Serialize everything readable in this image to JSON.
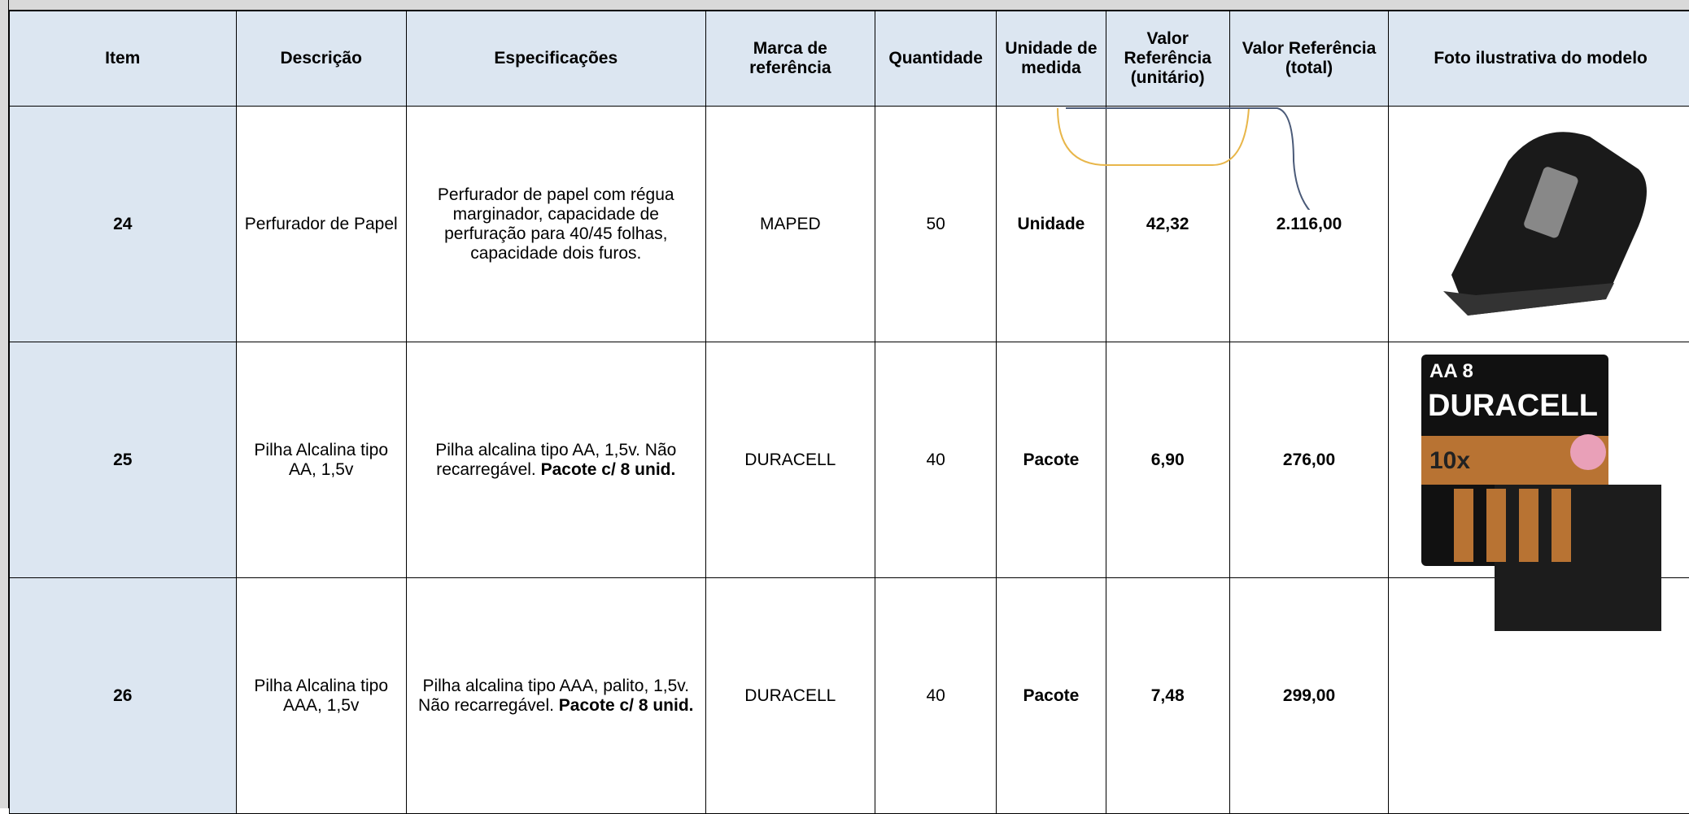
{
  "table": {
    "header": [
      "Item",
      "Descrição",
      "Especificações",
      "Marca de referência",
      "Quantidade",
      "Unidade de medida",
      "Valor Referência (unitário)",
      "Valor Referência (total)",
      "Foto ilustrativa do modelo"
    ],
    "rows": [
      {
        "item": "24",
        "descricao": "Perfurador de Papel",
        "spec": "Perfurador de papel com régua marginador, capacidade de perfuração para 40/45 folhas, capacidade dois furos.",
        "marca": "MAPED",
        "quantidade": "50",
        "unidade": "Unidade",
        "unitario": "42,32",
        "total": "2.116,00"
      },
      {
        "item": "25",
        "descricao": "Pilha Alcalina tipo AA, 1,5v",
        "spec": "Pilha alcalina tipo AA, 1,5v. Não recarregável.",
        "spec_bold": "Pacote c/ 8 unid.",
        "marca": "DURACELL",
        "quantidade": "40",
        "unidade": "Pacote",
        "unitario": "6,90",
        "total": "276,00"
      },
      {
        "item": "26",
        "descricao": "Pilha Alcalina tipo AAA, 1,5v",
        "spec": "Pilha alcalina tipo AAA, palito, 1,5v. Não recarregável.",
        "spec_bold": "Pacote c/ 8 unid.",
        "marca": "DURACELL",
        "quantidade": "40",
        "unidade": "Pacote",
        "unitario": "7,48",
        "total": "299,00"
      }
    ],
    "photo_text": {
      "pack": "AA 8",
      "brand": "DURACELL",
      "promo": "10x"
    }
  }
}
